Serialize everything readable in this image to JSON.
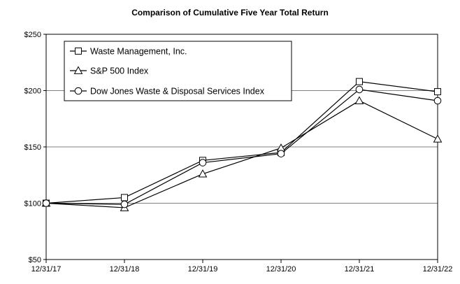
{
  "chart_data": {
    "type": "line",
    "title": "Comparison of Cumulative Five Year Total Return",
    "xlabel": "",
    "ylabel": "",
    "categories": [
      "12/31/17",
      "12/31/18",
      "12/31/19",
      "12/31/20",
      "12/31/21",
      "12/31/22"
    ],
    "y_ticks": [
      "$50",
      "$100",
      "$150",
      "$200",
      "$250"
    ],
    "ylim": [
      50,
      250
    ],
    "grid": "horizontal",
    "legend_position": "top-left",
    "series": [
      {
        "name": "Waste Management, Inc.",
        "marker": "square",
        "values": [
          100,
          105,
          138,
          145,
          208,
          199
        ]
      },
      {
        "name": "S&P 500 Index",
        "marker": "triangle",
        "values": [
          100,
          96,
          126,
          149,
          191,
          157
        ]
      },
      {
        "name": "Dow Jones Waste & Disposal Services Index",
        "marker": "circle",
        "values": [
          100,
          99,
          136,
          144,
          201,
          191
        ]
      }
    ],
    "line_color": "#000000",
    "grid_color": "#808080"
  }
}
